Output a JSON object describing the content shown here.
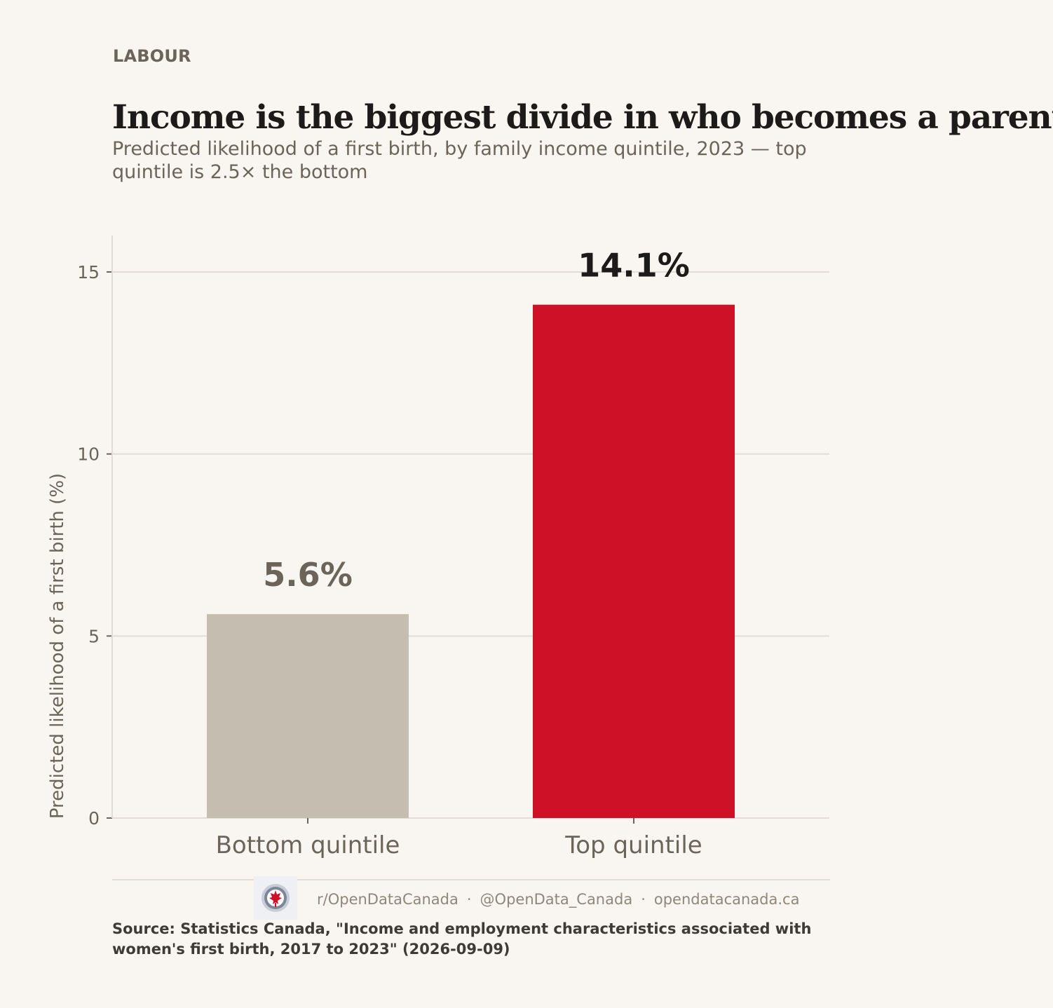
{
  "kicker": "LABOUR",
  "title": "Income is the biggest divide in who becomes a parent",
  "subtitle": "Predicted likelihood of a first birth, by family income quintile, 2023 — top quintile is 2.5× the bottom",
  "colors": {
    "background": "#f9f6f1",
    "bottom_bar": "#c5bdb0",
    "top_bar": "#ce1126",
    "gridline": "#e2ded7",
    "muted_text": "#6b645a",
    "dark_text": "#1d1b19"
  },
  "chart_data": {
    "type": "bar",
    "categories": [
      "Bottom quintile",
      "Top quintile"
    ],
    "values": [
      5.6,
      14.1
    ],
    "value_labels": [
      "5.6%",
      "14.1%"
    ],
    "bar_colors": [
      "#c5bdb0",
      "#ce1126"
    ],
    "value_label_colors": [
      "#6b645a",
      "#1d1b19"
    ],
    "ylabel": "Predicted likelihood of a first birth (%)",
    "xlabel": "",
    "ylim": [
      0,
      16
    ],
    "yticks": [
      0,
      5,
      10,
      15
    ],
    "grid": true,
    "legend": "none"
  },
  "footer": {
    "logo_icon": "open-data-canada-logo-icon",
    "reddit": "r/OpenDataCanada",
    "separator": "·",
    "twitter": "@OpenData_Canada",
    "website": "opendatacanada.ca",
    "source": "Source: Statistics Canada, \"Income and employment characteristics associated with women's first birth, 2017 to 2023\" (2026-09-09)"
  }
}
